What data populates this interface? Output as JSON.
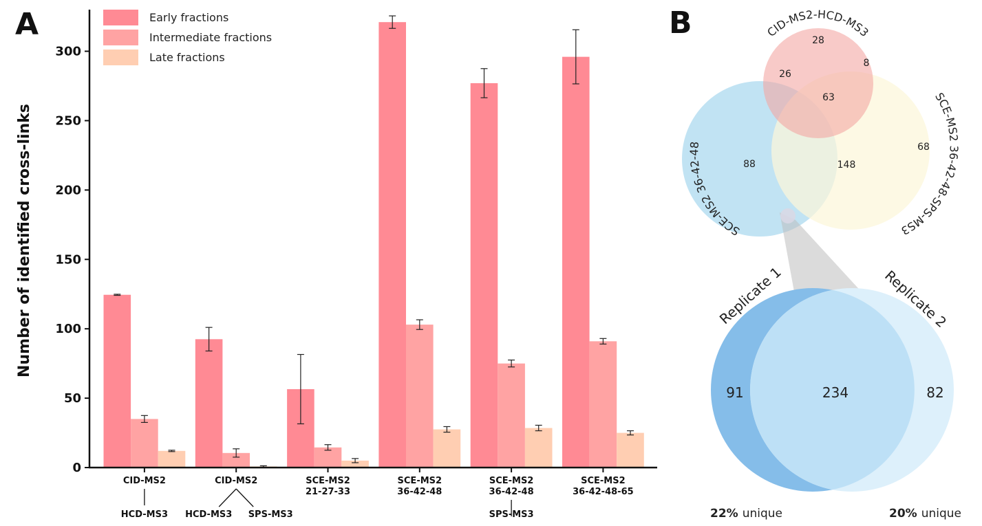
{
  "panel_a_letter": "A",
  "panel_b_letter": "B",
  "chart_data": [
    {
      "type": "bar",
      "ylabel": "Number of identified cross-links",
      "xlabel": "",
      "ylim": [
        0,
        330
      ],
      "yticks": [
        0,
        50,
        100,
        150,
        200,
        250,
        300
      ],
      "legend_position": "top-left",
      "categories": [
        {
          "top": [
            "CID-MS2"
          ],
          "bottom": [
            "HCD-MS3"
          ],
          "connector": "single"
        },
        {
          "top": [
            "CID-MS2"
          ],
          "bottom": [
            "HCD-MS3",
            "SPS-MS3"
          ],
          "connector": "fork"
        },
        {
          "top": [
            "SCE-MS2",
            "21-27-33"
          ],
          "bottom": [],
          "connector": "none"
        },
        {
          "top": [
            "SCE-MS2",
            "36-42-48"
          ],
          "bottom": [],
          "connector": "none"
        },
        {
          "top": [
            "SCE-MS2",
            "36-42-48"
          ],
          "bottom": [
            "SPS-MS3"
          ],
          "connector": "single"
        },
        {
          "top": [
            "SCE-MS2",
            "36-42-48-65"
          ],
          "bottom": [],
          "connector": "none"
        }
      ],
      "series": [
        {
          "name": "Early fractions",
          "color": "#FF8A94",
          "values": [
            124.5,
            92.5,
            56.5,
            321,
            277,
            296
          ],
          "errors": [
            0.4,
            8.5,
            25,
            4.5,
            10.5,
            19.5
          ]
        },
        {
          "name": "Intermediate fractions",
          "color": "#FFA3A3",
          "values": [
            35,
            10.5,
            14.5,
            103,
            75,
            91
          ],
          "errors": [
            2.5,
            3,
            2,
            3.5,
            2.5,
            2
          ]
        },
        {
          "name": "Late fractions",
          "color": "#FFCEB2",
          "values": [
            12,
            0.8,
            5,
            27.5,
            28.5,
            25
          ],
          "errors": [
            0.5,
            0.5,
            1.5,
            2,
            2,
            1.5
          ]
        }
      ]
    },
    {
      "type": "venn",
      "sets": [
        {
          "name": "CID-MS2-HCD-MS3",
          "color": "#F4A7A3"
        },
        {
          "name": "SCE-MS2 36-42-48",
          "color": "#A9D8EE"
        },
        {
          "name": "SCE-MS2 36-42-48-SPS-MS3",
          "color": "#FCF6D9"
        }
      ],
      "regions": [
        {
          "sets": [
            "CID-MS2-HCD-MS3"
          ],
          "value": 28
        },
        {
          "sets": [
            "CID-MS2-HCD-MS3",
            "SCE-MS2 36-42-48"
          ],
          "value": 26
        },
        {
          "sets": [
            "CID-MS2-HCD-MS3",
            "SCE-MS2 36-42-48-SPS-MS3"
          ],
          "value": 8
        },
        {
          "sets": [
            "CID-MS2-HCD-MS3",
            "SCE-MS2 36-42-48",
            "SCE-MS2 36-42-48-SPS-MS3"
          ],
          "value": 63
        },
        {
          "sets": [
            "SCE-MS2 36-42-48"
          ],
          "value": 88
        },
        {
          "sets": [
            "SCE-MS2 36-42-48",
            "SCE-MS2 36-42-48-SPS-MS3"
          ],
          "value": 148
        },
        {
          "sets": [
            "SCE-MS2 36-42-48-SPS-MS3"
          ],
          "value": 68
        }
      ]
    },
    {
      "type": "venn",
      "sets": [
        {
          "name": "Replicate 1",
          "color": "#85BDE9"
        },
        {
          "name": "Replicate 2",
          "color": "#DDF0FB"
        }
      ],
      "regions": [
        {
          "sets": [
            "Replicate 1"
          ],
          "value": 91
        },
        {
          "sets": [
            "Replicate 1",
            "Replicate 2"
          ],
          "value": 234
        },
        {
          "sets": [
            "Replicate 2"
          ],
          "value": 82
        }
      ],
      "unique": [
        {
          "percent": "22%",
          "word": "unique"
        },
        {
          "percent": "20%",
          "word": "unique"
        }
      ]
    }
  ]
}
